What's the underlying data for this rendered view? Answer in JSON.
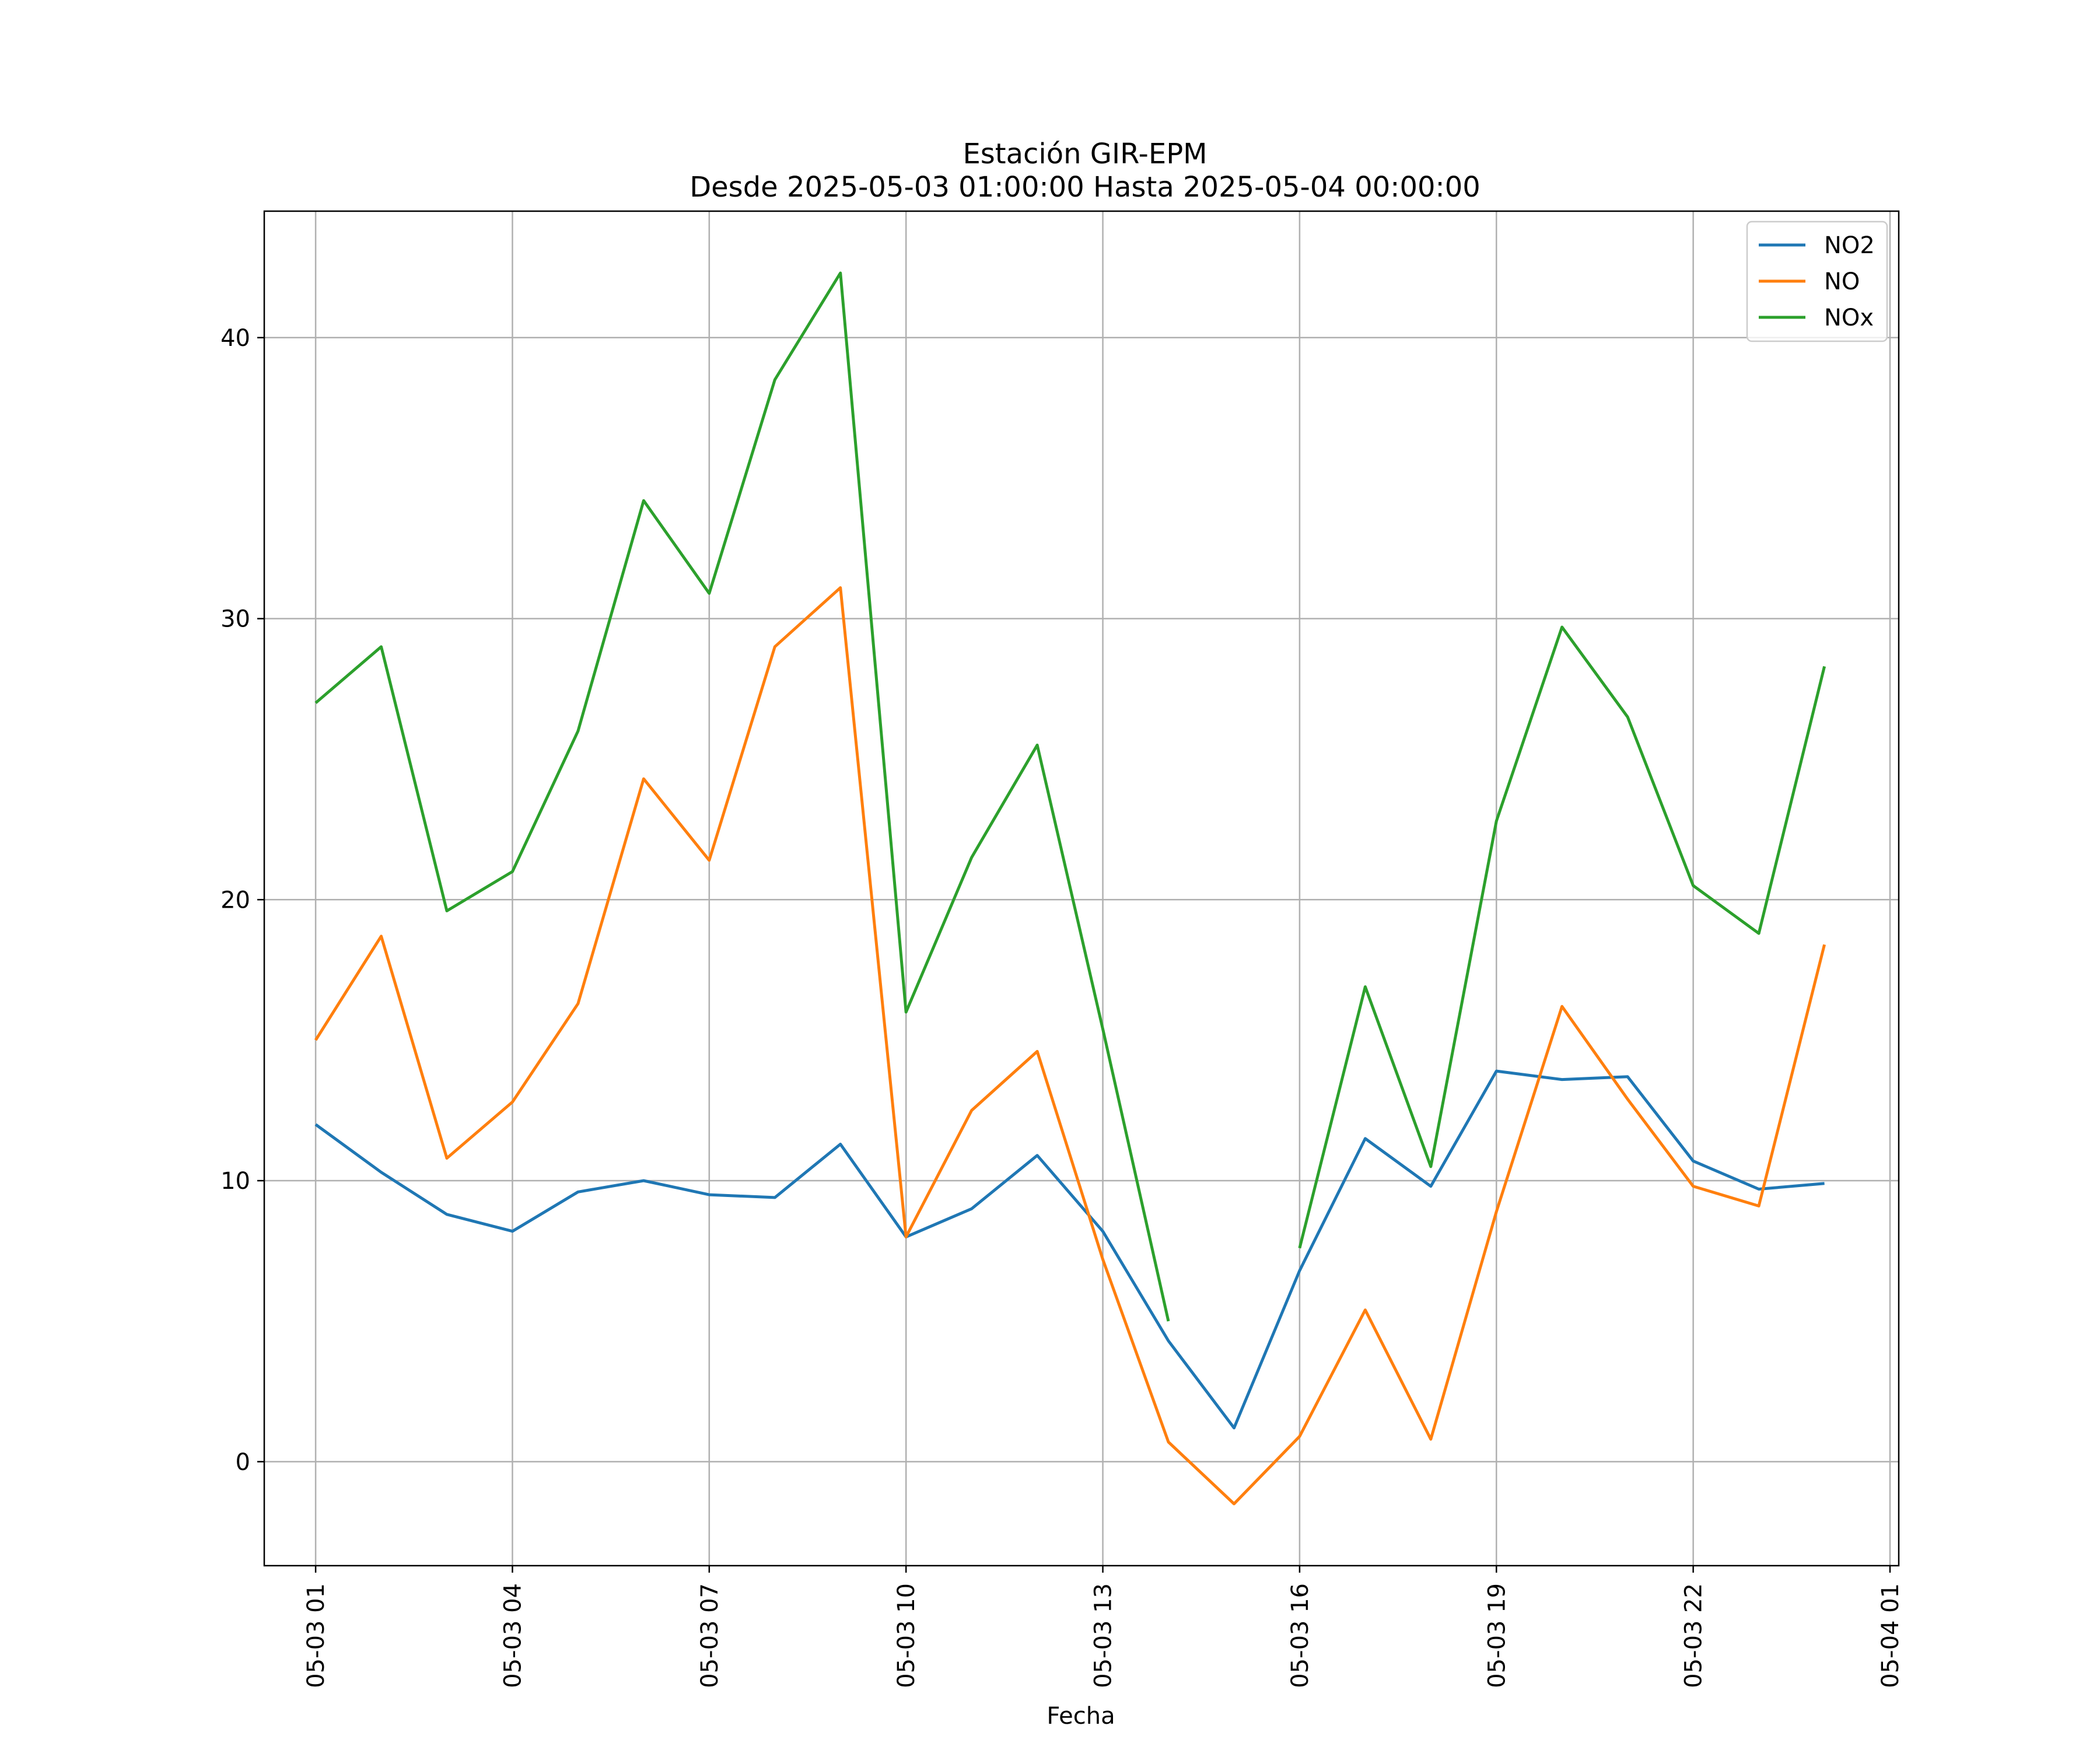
{
  "chart_data": {
    "type": "line",
    "title": "Estación GIR-EPM",
    "subtitle": "Desde 2025-05-03 01:00:00 Hasta 2025-05-04 00:00:00",
    "xlabel": "Fecha",
    "ylabel": "",
    "x": [
      "05-03 01",
      "05-03 02",
      "05-03 03",
      "05-03 04",
      "05-03 05",
      "05-03 06",
      "05-03 07",
      "05-03 08",
      "05-03 09",
      "05-03 10",
      "05-03 11",
      "05-03 12",
      "05-03 13",
      "05-03 14",
      "05-03 15",
      "05-03 16",
      "05-03 17",
      "05-03 18",
      "05-03 19",
      "05-03 20",
      "05-03 21",
      "05-03 22",
      "05-03 23",
      "05-04 00"
    ],
    "x_ticks": [
      "05-03 01",
      "05-03 04",
      "05-03 07",
      "05-03 10",
      "05-03 13",
      "05-03 16",
      "05-03 19",
      "05-03 22",
      "05-04 01"
    ],
    "xlim": [
      "05-03 00:13",
      "05-04 01:08"
    ],
    "ylim": [
      -3.7,
      44.5
    ],
    "y_ticks": [
      0,
      10,
      20,
      30,
      40
    ],
    "grid": true,
    "legend_position": "top-right",
    "series": [
      {
        "name": "NO2",
        "color": "#1f77b4",
        "values": [
          12.0,
          10.3,
          8.8,
          8.2,
          9.6,
          10.0,
          9.5,
          9.4,
          11.3,
          8.0,
          9.0,
          10.9,
          8.2,
          4.3,
          1.2,
          6.8,
          11.5,
          9.8,
          13.9,
          13.6,
          13.7,
          10.7,
          9.7,
          9.9
        ]
      },
      {
        "name": "NO",
        "color": "#ff7f0e",
        "values": [
          15.0,
          18.7,
          10.8,
          12.8,
          16.3,
          24.3,
          21.4,
          29.0,
          31.1,
          8.0,
          12.5,
          14.6,
          7.2,
          0.7,
          -1.5,
          0.9,
          5.4,
          0.8,
          8.9,
          16.2,
          12.9,
          9.8,
          9.1,
          18.4
        ]
      },
      {
        "name": "NOx",
        "color": "#2ca02c",
        "values": [
          27.0,
          29.0,
          19.6,
          21.0,
          26.0,
          34.2,
          30.9,
          38.5,
          42.3,
          16.0,
          21.5,
          25.5,
          15.4,
          5.0,
          null,
          7.6,
          16.9,
          10.5,
          22.8,
          29.7,
          26.5,
          20.5,
          18.8,
          28.3
        ]
      }
    ]
  }
}
